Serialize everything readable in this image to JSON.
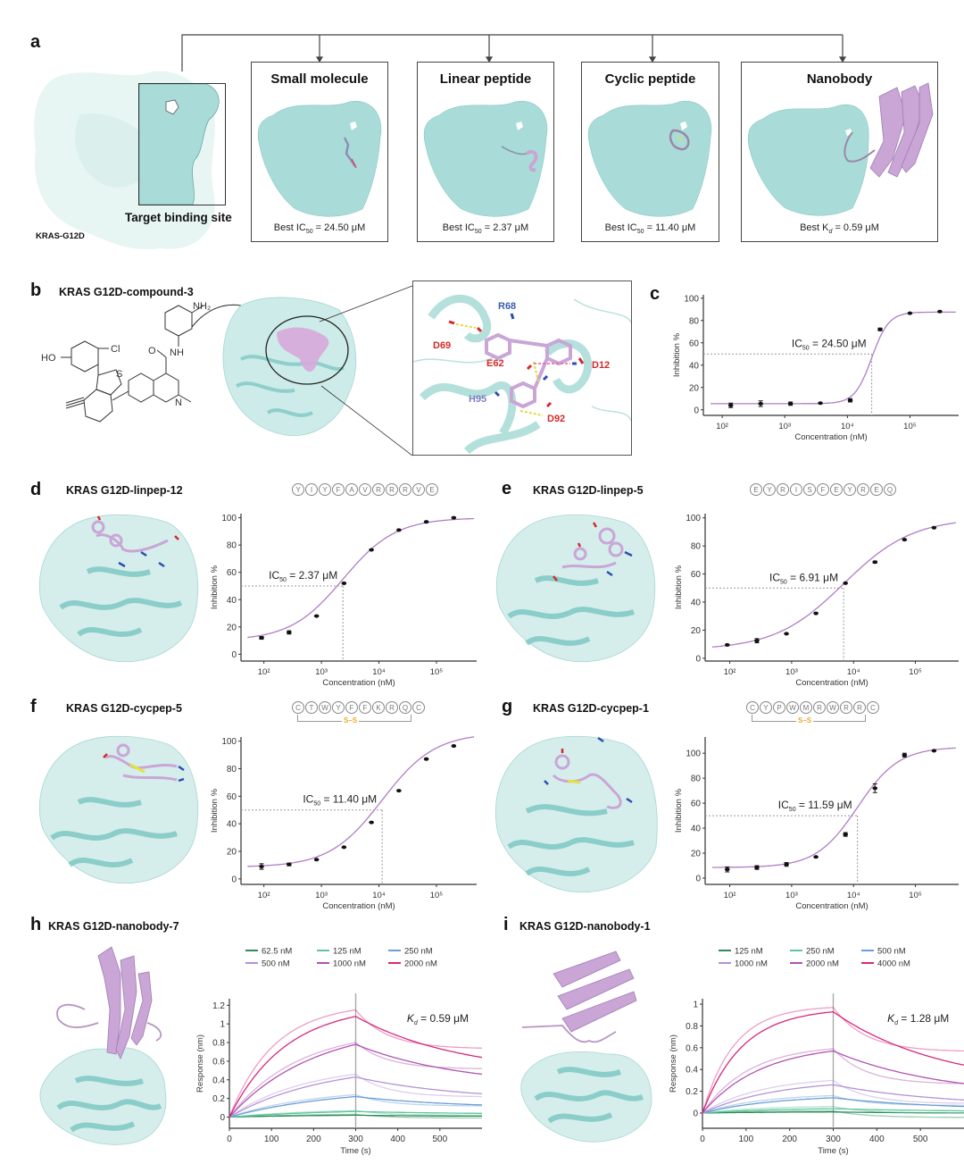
{
  "panel_a": {
    "letter": "a",
    "protein_label": "KRAS-G12D",
    "binding_site_label": "Target binding site",
    "categories": [
      {
        "title": "Small molecule",
        "metric_prefix": "Best IC",
        "metric_sub": "50",
        "metric_value": " = 24.50 μM"
      },
      {
        "title": "Linear peptide",
        "metric_prefix": "Best IC",
        "metric_sub": "50",
        "metric_value": " = 2.37 μM"
      },
      {
        "title": "Cyclic peptide",
        "metric_prefix": "Best IC",
        "metric_sub": "50",
        "metric_value": " = 11.40 μM"
      },
      {
        "title": "Nanobody",
        "metric_prefix": "Best K",
        "metric_sub": "d",
        "metric_value": " = 0.59 μM"
      }
    ]
  },
  "panel_b": {
    "letter": "b",
    "title": "KRAS G12D-compound-3",
    "chem_labels": {
      "nh2": "NH₂",
      "nh": "NH",
      "o": "O",
      "ho": "HO",
      "cl": "Cl",
      "s": "S",
      "n": "N"
    },
    "residues": [
      {
        "name": "R68",
        "color": "#3a5fb0"
      },
      {
        "name": "D69",
        "color": "#d42a2a"
      },
      {
        "name": "E62",
        "color": "#d42a2a"
      },
      {
        "name": "D12",
        "color": "#d42a2a"
      },
      {
        "name": "H95",
        "color": "#7d7fc0"
      },
      {
        "name": "D92",
        "color": "#d42a2a"
      }
    ]
  },
  "colors": {
    "protein_surface": "#aee0dd",
    "protein_cartoon": "#7fc8c4",
    "ligand": "#c9a6d6",
    "fit_curve": "#b07cc6",
    "points": "#111111",
    "ss_bond": "#f0a830"
  },
  "panels_dr": [
    {
      "letter": "c",
      "title": "",
      "sequence": [],
      "cyclic": false,
      "ic50_label_prefix": "IC",
      "ic50_label_sub": "50",
      "ic50_label_value": " = 24.50 μM"
    },
    {
      "letter": "d",
      "title": "KRAS G12D-linpep-12",
      "sequence": [
        "Y",
        "I",
        "Y",
        "F",
        "A",
        "V",
        "R",
        "R",
        "R",
        "V",
        "E"
      ],
      "cyclic": false,
      "ic50_label_prefix": "IC",
      "ic50_label_sub": "50",
      "ic50_label_value": " = 2.37 μM"
    },
    {
      "letter": "e",
      "title": "KRAS G12D-linpep-5",
      "sequence": [
        "E",
        "Y",
        "R",
        "I",
        "S",
        "F",
        "E",
        "Y",
        "R",
        "E",
        "Q"
      ],
      "cyclic": false,
      "ic50_label_prefix": "IC",
      "ic50_label_sub": "50",
      "ic50_label_value": " = 6.91 μM"
    },
    {
      "letter": "f",
      "title": "KRAS G12D-cycpep-5",
      "sequence": [
        "C",
        "T",
        "W",
        "Y",
        "F",
        "F",
        "K",
        "R",
        "Q",
        "C"
      ],
      "cyclic": true,
      "ss_label": "S–S",
      "ic50_label_prefix": "IC",
      "ic50_label_sub": "50",
      "ic50_label_value": " = 11.40 μM"
    },
    {
      "letter": "g",
      "title": "KRAS G12D-cycpep-1",
      "sequence": [
        "C",
        "Y",
        "P",
        "W",
        "M",
        "R",
        "W",
        "R",
        "R",
        "C"
      ],
      "cyclic": true,
      "ss_label": "S–S",
      "ic50_label_prefix": "IC",
      "ic50_label_sub": "50",
      "ic50_label_value": " = 11.59 μM"
    }
  ],
  "panels_bli": [
    {
      "letter": "h",
      "title": "KRAS G12D-nanobody-7",
      "kd_prefix": "K",
      "kd_sub": "d",
      "kd_value": " = 0.59 μM"
    },
    {
      "letter": "i",
      "title": "KRAS G12D-nanobody-1",
      "kd_prefix": "K",
      "kd_sub": "d",
      "kd_value": " = 1.28 μM"
    }
  ],
  "chart_data": [
    {
      "id": "c",
      "type": "scatter",
      "title": "",
      "xlabel": "Concentration (nM)",
      "ylabel": "Inhibition %",
      "xscale": "log",
      "xlim": [
        50,
        600000
      ],
      "ylim": [
        -5,
        100
      ],
      "xticks": [
        "10²",
        "10³",
        "10⁴",
        "10⁵"
      ],
      "xtick_values": [
        100,
        1000,
        10000,
        100000
      ],
      "yticks": [
        0,
        20,
        40,
        60,
        80,
        100
      ],
      "x": [
        137,
        412,
        1235,
        3704,
        11111,
        33333,
        100000,
        300000
      ],
      "y": [
        4,
        5.5,
        5.5,
        6,
        8.5,
        72,
        86.5,
        88
      ],
      "err": [
        2,
        2.5,
        1.5,
        0.5,
        1.5,
        1.2,
        0.5,
        0.3
      ],
      "fit": {
        "bottom": 5.5,
        "top": 87.5,
        "ic50": 24500,
        "hill": 3.2
      },
      "ic50_nM": 24500,
      "ic50_text": "IC50 = 24.50 μM"
    },
    {
      "id": "d",
      "type": "scatter",
      "title": "",
      "xlabel": "Concentration (nM)",
      "ylabel": "Inhibition %",
      "xscale": "log",
      "xlim": [
        40,
        500000
      ],
      "ylim": [
        -5,
        100
      ],
      "xticks": [
        "10²",
        "10³",
        "10⁴",
        "10⁵"
      ],
      "xtick_values": [
        100,
        1000,
        10000,
        100000
      ],
      "yticks": [
        0,
        20,
        40,
        60,
        80,
        100
      ],
      "x": [
        91,
        274,
        823,
        2469,
        7407,
        22222,
        66667,
        200000
      ],
      "y": [
        12,
        16,
        28,
        52,
        76.5,
        91,
        97,
        100
      ],
      "err": [
        1,
        1.2,
        0.6,
        0.6,
        0.6,
        0.6,
        0.6,
        0.3
      ],
      "fit": {
        "bottom": 10,
        "top": 100,
        "ic50": 2370,
        "hill": 0.95
      },
      "ic50_nM": 2370,
      "ic50_text": "IC50 = 2.37 μM"
    },
    {
      "id": "e",
      "type": "scatter",
      "title": "",
      "xlabel": "Concentration (nM)",
      "ylabel": "Inhibition %",
      "xscale": "log",
      "xlim": [
        40,
        500000
      ],
      "ylim": [
        -2,
        100
      ],
      "xticks": [
        "10²",
        "10³",
        "10⁴",
        "10⁵"
      ],
      "xtick_values": [
        100,
        1000,
        10000,
        100000
      ],
      "yticks": [
        0,
        20,
        40,
        60,
        80,
        100
      ],
      "x": [
        91,
        274,
        823,
        2469,
        7407,
        22222,
        66667,
        200000
      ],
      "y": [
        9.5,
        12.5,
        17.5,
        32,
        53.5,
        68.5,
        84.5,
        93
      ],
      "err": [
        0.5,
        1.5,
        0.6,
        0.5,
        0.6,
        0.7,
        0.5,
        0.3
      ],
      "fit": {
        "bottom": 6,
        "top": 100,
        "ic50": 6910,
        "hill": 0.78
      },
      "ic50_nM": 6910,
      "ic50_text": "IC50 = 6.91 μM"
    },
    {
      "id": "f",
      "type": "scatter",
      "title": "",
      "xlabel": "Concentration (nM)",
      "ylabel": "Inhibition %",
      "xscale": "log",
      "xlim": [
        40,
        500000
      ],
      "ylim": [
        -4,
        100
      ],
      "xticks": [
        "10²",
        "10³",
        "10⁴",
        "10⁵"
      ],
      "xtick_values": [
        100,
        1000,
        10000,
        100000
      ],
      "yticks": [
        0,
        20,
        40,
        60,
        80,
        100
      ],
      "x": [
        91,
        274,
        823,
        2469,
        7407,
        22222,
        66667,
        200000
      ],
      "y": [
        9,
        10.5,
        14,
        23,
        41,
        64,
        87,
        96.5
      ],
      "err": [
        2,
        1,
        0.5,
        0.4,
        0.6,
        0.4,
        0.5,
        0.3
      ],
      "fit": {
        "bottom": 8.5,
        "top": 106,
        "ic50": 11400,
        "hill": 0.95
      },
      "ic50_nM": 11400,
      "ic50_text": "IC50 = 11.40 μM"
    },
    {
      "id": "g",
      "type": "scatter",
      "title": "",
      "xlabel": "Concentration (nM)",
      "ylabel": "Inhibition %",
      "xscale": "log",
      "xlim": [
        40,
        500000
      ],
      "ylim": [
        -5,
        110
      ],
      "xticks": [
        "10²",
        "10³",
        "10⁴",
        "10⁵"
      ],
      "xtick_values": [
        100,
        1000,
        10000,
        100000
      ],
      "yticks": [
        0,
        20,
        40,
        60,
        80,
        100
      ],
      "x": [
        91,
        274,
        823,
        2469,
        7407,
        22222,
        66667,
        200000
      ],
      "y": [
        7,
        8.5,
        11,
        17,
        35,
        72,
        98.5,
        102
      ],
      "err": [
        2,
        1.5,
        1.5,
        0.5,
        1.5,
        3.5,
        1.5,
        0.3
      ],
      "fit": {
        "bottom": 8.5,
        "top": 105,
        "ic50": 11590,
        "hill": 1.3
      },
      "ic50_nM": 11590,
      "ic50_text": "IC50 = 11.59 μM"
    },
    {
      "id": "h",
      "type": "line",
      "title": "",
      "xlabel": "Time (s)",
      "ylabel": "Response (nm)",
      "xlim": [
        0,
        600
      ],
      "ylim": [
        -0.12,
        1.27
      ],
      "xticks": [
        0,
        100,
        200,
        300,
        400,
        500
      ],
      "yticks": [
        0,
        0.2,
        0.4,
        0.6,
        0.8,
        1,
        1.2
      ],
      "ytick_labels": [
        "0",
        "0.2",
        "0.4",
        "0.6",
        "0.8",
        "1",
        "1.2"
      ],
      "association_end": 300,
      "legend_position": "top",
      "kd_text": "Kd = 0.59 μM",
      "series": [
        {
          "name": "62.5 nM",
          "color": "#2e8b57",
          "peak_fit": 0.02,
          "peak_raw": 0.03,
          "end_fit": 0.01,
          "end_raw": -0.01,
          "kobs": 0.004
        },
        {
          "name": "125 nM",
          "color": "#5cc6a0",
          "peak_fit": 0.06,
          "peak_raw": 0.07,
          "end_fit": 0.04,
          "end_raw": 0.02,
          "kobs": 0.004
        },
        {
          "name": "250 nM",
          "color": "#6a9ed8",
          "peak_fit": 0.22,
          "peak_raw": 0.24,
          "end_fit": 0.13,
          "end_raw": 0.12,
          "kobs": 0.004
        },
        {
          "name": "500 nM",
          "color": "#b493d6",
          "peak_fit": 0.43,
          "peak_raw": 0.46,
          "end_fit": 0.25,
          "end_raw": 0.22,
          "kobs": 0.0045
        },
        {
          "name": "1000 nM",
          "color": "#b054b0",
          "peak_fit": 0.78,
          "peak_raw": 0.8,
          "end_fit": 0.46,
          "end_raw": 0.52,
          "kobs": 0.005
        },
        {
          "name": "2000 nM",
          "color": "#d6287f",
          "peak_fit": 1.08,
          "peak_raw": 1.15,
          "end_fit": 0.64,
          "end_raw": 0.74,
          "kobs": 0.0075
        }
      ]
    },
    {
      "id": "i",
      "type": "line",
      "title": "",
      "xlabel": "Time (s)",
      "ylabel": "Response (nm)",
      "xlim": [
        0,
        600
      ],
      "ylim": [
        -0.14,
        1.05
      ],
      "xticks": [
        0,
        100,
        200,
        300,
        400,
        500
      ],
      "yticks": [
        0,
        0.2,
        0.4,
        0.6,
        0.8,
        1
      ],
      "ytick_labels": [
        "0",
        "0.2",
        "0.4",
        "0.6",
        "0.8",
        "1"
      ],
      "association_end": 300,
      "legend_position": "top",
      "kd_text": "Kd = 1.28 μM",
      "series": [
        {
          "name": "125 nM",
          "color": "#2e8b57",
          "peak_fit": 0.01,
          "peak_raw": 0.02,
          "end_fit": 0.0,
          "end_raw": -0.04,
          "kobs": 0.005
        },
        {
          "name": "250 nM",
          "color": "#5cc6a0",
          "peak_fit": 0.04,
          "peak_raw": 0.06,
          "end_fit": 0.02,
          "end_raw": 0.0,
          "kobs": 0.006
        },
        {
          "name": "500 nM",
          "color": "#6a9ed8",
          "peak_fit": 0.14,
          "peak_raw": 0.16,
          "end_fit": 0.06,
          "end_raw": 0.07,
          "kobs": 0.006
        },
        {
          "name": "1000 nM",
          "color": "#b493d6",
          "peak_fit": 0.26,
          "peak_raw": 0.3,
          "end_fit": 0.12,
          "end_raw": 0.09,
          "kobs": 0.006
        },
        {
          "name": "2000 nM",
          "color": "#b054b0",
          "peak_fit": 0.57,
          "peak_raw": 0.59,
          "end_fit": 0.27,
          "end_raw": 0.27,
          "kobs": 0.0075
        },
        {
          "name": "4000 nM",
          "color": "#d6287f",
          "peak_fit": 0.93,
          "peak_raw": 0.97,
          "end_fit": 0.44,
          "end_raw": 0.57,
          "kobs": 0.011
        }
      ]
    }
  ]
}
